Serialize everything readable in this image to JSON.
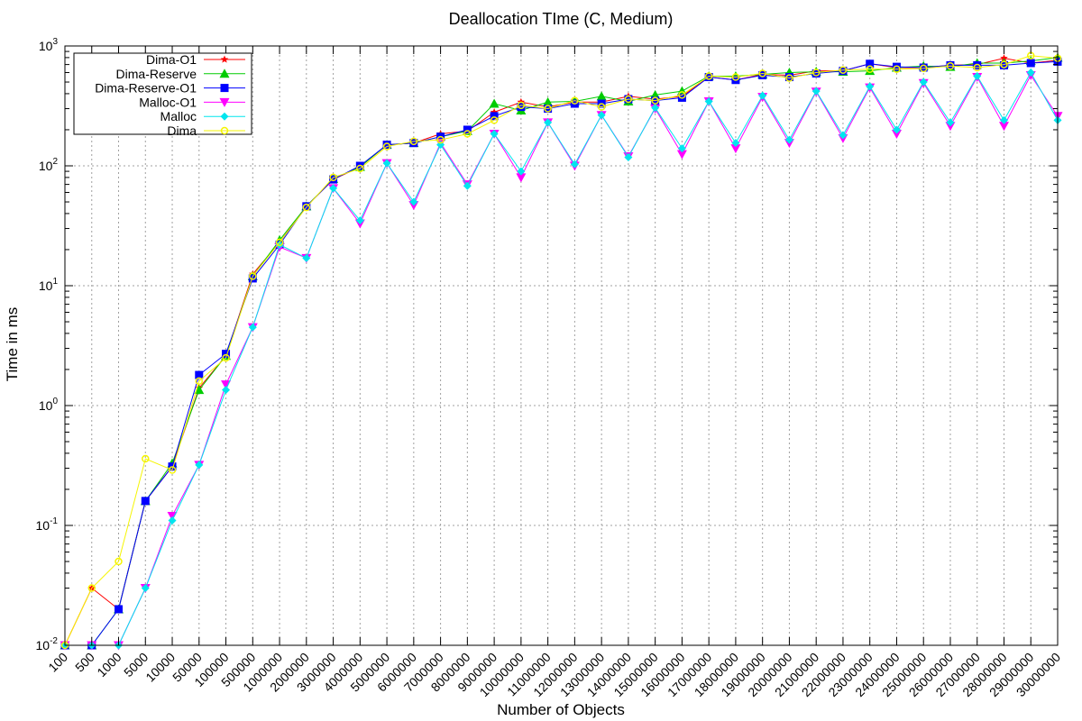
{
  "chart_data": {
    "type": "line",
    "title": "Deallocation TIme (C, Medium)",
    "xlabel": "Number of Objects",
    "ylabel": "Time in ms",
    "yscale": "log",
    "ylim": [
      0.01,
      1000
    ],
    "y_tick_labels": [
      {
        "base": "10",
        "exp": "-2"
      },
      {
        "base": "10",
        "exp": "-1"
      },
      {
        "base": "10",
        "exp": "0"
      },
      {
        "base": "10",
        "exp": "1"
      },
      {
        "base": "10",
        "exp": "2"
      },
      {
        "base": "10",
        "exp": "3"
      }
    ],
    "grid": true,
    "legend_position": "top-left",
    "categories": [
      "100",
      "500",
      "1000",
      "5000",
      "10000",
      "50000",
      "100000",
      "500000",
      "1000000",
      "2000000",
      "3000000",
      "4000000",
      "5000000",
      "6000000",
      "7000000",
      "8000000",
      "9000000",
      "10000000",
      "11000000",
      "12000000",
      "13000000",
      "14000000",
      "15000000",
      "16000000",
      "17000000",
      "18000000",
      "19000000",
      "20000000",
      "21000000",
      "22000000",
      "23000000",
      "24000000",
      "25000000",
      "26000000",
      "27000000",
      "28000000",
      "29000000",
      "30000000"
    ],
    "series": [
      {
        "name": "Dima-O1",
        "color": "#ff0000",
        "marker": "star",
        "values": [
          0.01,
          0.03,
          0.02,
          0.16,
          0.31,
          1.4,
          2.6,
          12.5,
          23,
          46,
          77,
          98,
          150,
          155,
          185,
          195,
          280,
          340,
          310,
          340,
          340,
          380,
          360,
          380,
          550,
          520,
          580,
          570,
          620,
          620,
          710,
          660,
          660,
          690,
          700,
          790,
          720,
          760
        ]
      },
      {
        "name": "Dima-Reserve",
        "color": "#00cc00",
        "marker": "triangle-up",
        "values": [
          0.01,
          0.01,
          0.02,
          0.16,
          0.33,
          1.35,
          2.6,
          12,
          24,
          46,
          78,
          98,
          150,
          155,
          175,
          195,
          330,
          290,
          340,
          345,
          380,
          345,
          390,
          420,
          560,
          560,
          580,
          600,
          610,
          610,
          620,
          660,
          680,
          670,
          720,
          720,
          750,
          800
        ]
      },
      {
        "name": "Dima-Reserve-O1",
        "color": "#0000ff",
        "marker": "square",
        "values": [
          0.01,
          0.01,
          0.02,
          0.16,
          0.31,
          1.8,
          2.7,
          11.5,
          22,
          46,
          77,
          100,
          150,
          155,
          175,
          200,
          260,
          310,
          300,
          330,
          330,
          360,
          350,
          370,
          550,
          520,
          570,
          550,
          590,
          620,
          710,
          670,
          660,
          690,
          690,
          690,
          720,
          740
        ]
      },
      {
        "name": "Malloc-O1",
        "color": "#ff00ff",
        "marker": "triangle-down",
        "values": [
          0.01,
          0.01,
          0.01,
          0.03,
          0.12,
          0.32,
          1.5,
          4.5,
          21,
          17,
          65,
          33,
          105,
          47,
          155,
          70,
          185,
          80,
          230,
          100,
          265,
          120,
          300,
          125,
          345,
          140,
          375,
          155,
          415,
          170,
          450,
          185,
          490,
          215,
          550,
          215,
          570,
          260
        ]
      },
      {
        "name": "Malloc",
        "color": "#00e5ee",
        "marker": "diamond",
        "values": [
          0.01,
          0.01,
          0.01,
          0.03,
          0.11,
          0.32,
          1.35,
          4.5,
          22,
          17,
          65,
          35,
          105,
          50,
          150,
          68,
          185,
          90,
          230,
          103,
          265,
          118,
          305,
          140,
          345,
          155,
          385,
          165,
          420,
          180,
          460,
          200,
          500,
          230,
          560,
          240,
          600,
          240
        ]
      },
      {
        "name": "Dima",
        "color": "#f5f500",
        "marker": "circle",
        "values": [
          0.01,
          0.03,
          0.05,
          0.36,
          0.29,
          1.6,
          2.5,
          12,
          23,
          45,
          80,
          95,
          145,
          160,
          165,
          185,
          240,
          320,
          300,
          350,
          310,
          360,
          350,
          390,
          560,
          550,
          590,
          540,
          600,
          630,
          640,
          640,
          650,
          680,
          660,
          700,
          830,
          790
        ]
      }
    ]
  }
}
